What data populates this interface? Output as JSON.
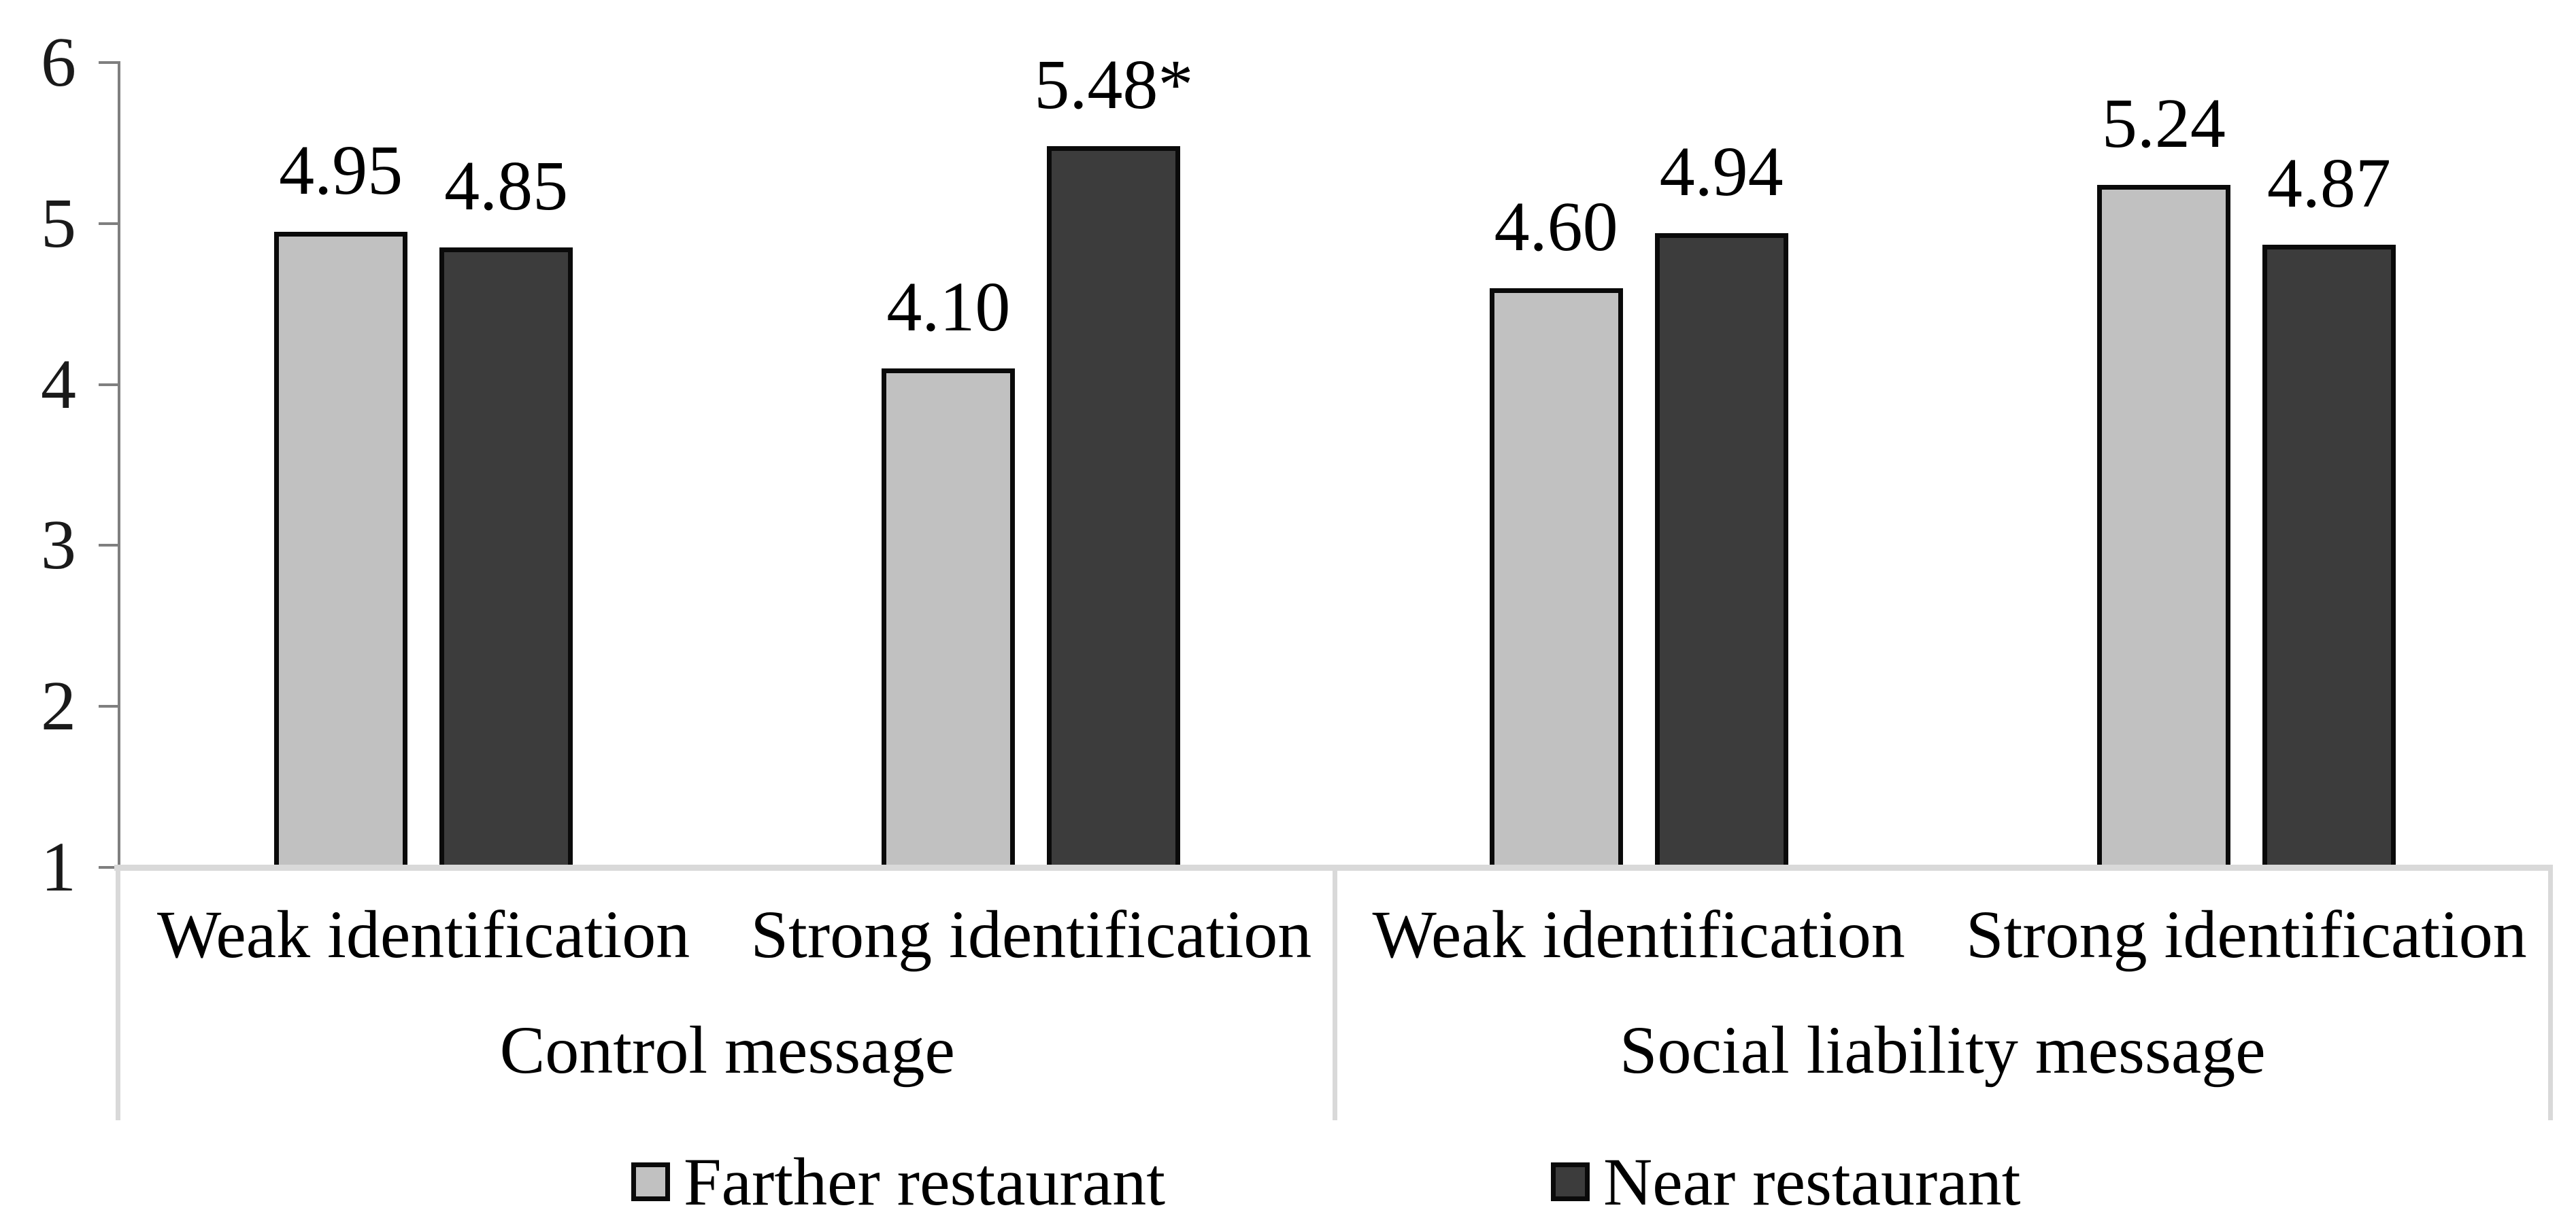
{
  "chart_data": {
    "type": "bar",
    "title": "",
    "categories": [
      "Weak identification",
      "Strong identification",
      "Weak identification",
      "Strong identification"
    ],
    "category_groups": [
      {
        "label": "Control message",
        "span": [
          0,
          1
        ]
      },
      {
        "label": "Social liability message",
        "span": [
          2,
          3
        ]
      }
    ],
    "series": [
      {
        "name": "Farther restaurant",
        "color": "#c1c1c1",
        "border_color": "#0a0a0a",
        "values": [
          4.95,
          4.1,
          4.6,
          5.24
        ],
        "value_labels": [
          "4.95",
          "4.10",
          "4.60",
          "5.24"
        ]
      },
      {
        "name": "Near restaurant",
        "color": "#3c3c3c",
        "border_color": "#0a0a0a",
        "values": [
          4.85,
          5.48,
          4.94,
          4.87
        ],
        "value_labels": [
          "4.85",
          "5.48*",
          "4.94",
          "4.87"
        ]
      }
    ],
    "ylim": [
      1,
      6
    ],
    "yticks": [
      1,
      2,
      3,
      4,
      5,
      6
    ],
    "grid": false,
    "legend_position": "bottom",
    "significance_marker": "*"
  },
  "styles": {
    "axis_color": "#7f7f7f",
    "category_box_line_color": "#d9d9d9",
    "text_color": "#000000",
    "background": "#ffffff"
  }
}
